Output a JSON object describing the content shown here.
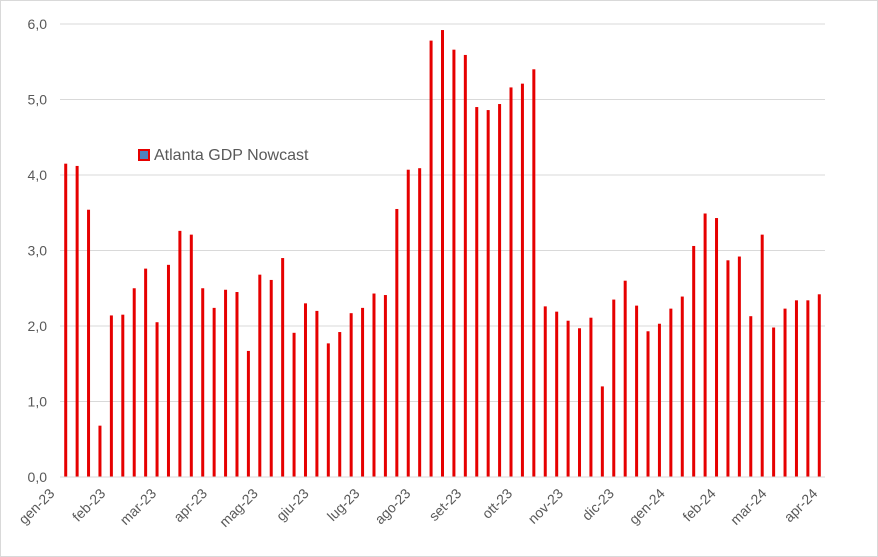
{
  "chart_data": {
    "type": "bar",
    "title": "",
    "xlabel": "",
    "ylabel": "",
    "ylim": [
      0,
      6
    ],
    "y_ticks": [
      "0,0",
      "1,0",
      "2,0",
      "3,0",
      "4,0",
      "5,0",
      "6,0"
    ],
    "grid": "horizontal",
    "legend_position": "upper-left",
    "x_tick_labels": [
      "gen-23",
      "feb-23",
      "mar-23",
      "apr-23",
      "mag-23",
      "giu-23",
      "lug-23",
      "ago-23",
      "set-23",
      "ott-23",
      "nov-23",
      "dic-23",
      "gen-24",
      "feb-24",
      "mar-24",
      "apr-24"
    ],
    "series": [
      {
        "name": "Atlanta GDP Nowcast",
        "color": "#e60000",
        "marker_fill": "#4f81bd",
        "values": [
          4.15,
          4.12,
          3.54,
          0.68,
          2.14,
          2.15,
          2.5,
          2.76,
          2.05,
          2.81,
          3.26,
          3.21,
          2.5,
          2.24,
          2.48,
          2.45,
          1.67,
          2.68,
          2.61,
          2.9,
          1.91,
          2.3,
          2.2,
          1.77,
          1.92,
          2.17,
          2.24,
          2.43,
          2.41,
          3.55,
          4.07,
          4.09,
          5.78,
          5.92,
          5.66,
          5.59,
          4.9,
          4.86,
          4.94,
          5.16,
          5.21,
          5.4,
          2.26,
          2.19,
          2.07,
          1.97,
          2.11,
          1.2,
          2.35,
          2.6,
          2.27,
          1.93,
          2.03,
          2.23,
          2.39,
          3.06,
          3.49,
          3.43,
          2.87,
          2.92,
          2.13,
          3.21,
          1.98,
          2.23,
          2.34,
          2.34,
          2.42
        ]
      }
    ]
  }
}
